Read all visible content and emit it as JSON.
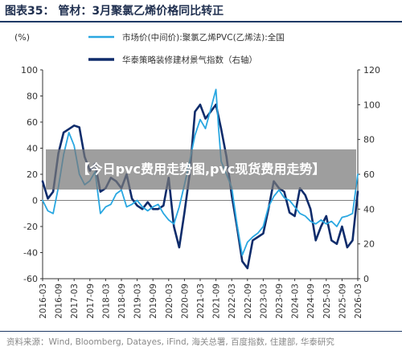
{
  "header": {
    "title": "图表35： 管材：3月聚氯乙烯价格同比转正"
  },
  "banner": {
    "text": "【今日pvc费用走势图,pvc现货费用走势】"
  },
  "footer": {
    "source": "资料来源：Wind, Bloomberg, Datayes, iFind, 海关总署, 百度指数, 住建部, 华泰研究"
  },
  "colors": {
    "series1": "#29a7e1",
    "series2": "#0f2c6b",
    "axis": "#333333"
  },
  "chart_data": {
    "type": "line",
    "left_unit_label": "(%)",
    "left_ylim": [
      -60,
      100
    ],
    "left_ticks": [
      -60,
      -40,
      -20,
      0,
      20,
      40,
      60,
      80,
      100
    ],
    "right_ylim": [
      0,
      120
    ],
    "right_ticks": [
      0,
      20,
      40,
      60,
      80,
      100,
      120
    ],
    "x_ticks": [
      "2016-03",
      "2016-09",
      "2017-03",
      "2017-09",
      "2018-03",
      "2018-09",
      "2019-03",
      "2019-09",
      "2020-03",
      "2020-09",
      "2021-03",
      "2021-09",
      "2022-03",
      "2022-09",
      "2023-03",
      "2023-09",
      "2024-03",
      "2024-09",
      "2025-03",
      "2025-09",
      "2026-03"
    ],
    "legend_position": "top-right",
    "series": [
      {
        "name": "市场价(中间价):聚氯乙烯PVC(乙烯法):全国",
        "axis": "left",
        "x": [
          "2016-03",
          "2016-05",
          "2016-07",
          "2016-09",
          "2016-11",
          "2017-01",
          "2017-03",
          "2017-05",
          "2017-07",
          "2017-09",
          "2017-11",
          "2018-01",
          "2018-03",
          "2018-05",
          "2018-07",
          "2018-09",
          "2018-11",
          "2019-01",
          "2019-03",
          "2019-05",
          "2019-07",
          "2019-09",
          "2019-11",
          "2020-01",
          "2020-03",
          "2020-05",
          "2020-07",
          "2020-09",
          "2020-11",
          "2021-01",
          "2021-03",
          "2021-05",
          "2021-07",
          "2021-09",
          "2021-10",
          "2021-11",
          "2022-01",
          "2022-03",
          "2022-05",
          "2022-07",
          "2022-09",
          "2022-11",
          "2023-01",
          "2023-03",
          "2023-05",
          "2023-07",
          "2023-09",
          "2023-11",
          "2024-01",
          "2024-03",
          "2024-05",
          "2024-07",
          "2024-09",
          "2024-11",
          "2025-01",
          "2025-03",
          "2025-05",
          "2025-07",
          "2025-09",
          "2025-11",
          "2026-01",
          "2026-03"
        ],
        "values": [
          0,
          -8,
          -10,
          10,
          35,
          52,
          42,
          20,
          12,
          15,
          22,
          -10,
          -5,
          -3,
          5,
          8,
          -5,
          -3,
          0,
          -5,
          -8,
          -5,
          -3,
          -10,
          -15,
          -18,
          -5,
          12,
          30,
          50,
          62,
          55,
          70,
          85,
          55,
          30,
          20,
          10,
          -18,
          -42,
          -32,
          -28,
          -25,
          -20,
          -5,
          3,
          8,
          2,
          0,
          -5,
          -10,
          -12,
          -16,
          -18,
          -15,
          -18,
          -16,
          -20,
          -13,
          -12,
          -10,
          20
        ]
      },
      {
        "name": "华泰策略装修建材景气指数（右轴）",
        "axis": "right",
        "x": [
          "2016-03",
          "2016-05",
          "2016-07",
          "2016-09",
          "2016-11",
          "2017-01",
          "2017-03",
          "2017-05",
          "2017-07",
          "2017-09",
          "2017-11",
          "2018-01",
          "2018-03",
          "2018-05",
          "2018-07",
          "2018-09",
          "2018-11",
          "2019-01",
          "2019-03",
          "2019-05",
          "2019-07",
          "2019-09",
          "2019-11",
          "2020-01",
          "2020-03",
          "2020-05",
          "2020-07",
          "2020-09",
          "2020-11",
          "2021-01",
          "2021-03",
          "2021-05",
          "2021-07",
          "2021-09",
          "2021-11",
          "2022-01",
          "2022-03",
          "2022-05",
          "2022-07",
          "2022-09",
          "2022-11",
          "2023-01",
          "2023-03",
          "2023-05",
          "2023-07",
          "2023-09",
          "2023-11",
          "2024-01",
          "2024-03",
          "2024-05",
          "2024-07",
          "2024-09",
          "2024-11",
          "2025-01",
          "2025-03",
          "2025-05",
          "2025-07",
          "2025-09",
          "2025-11",
          "2026-01",
          "2026-03"
        ],
        "values": [
          56,
          46,
          50,
          72,
          84,
          86,
          88,
          87,
          70,
          62,
          66,
          50,
          52,
          58,
          56,
          52,
          60,
          46,
          42,
          40,
          44,
          40,
          40,
          42,
          58,
          30,
          18,
          38,
          60,
          96,
          100,
          92,
          96,
          100,
          86,
          70,
          48,
          30,
          10,
          6,
          22,
          24,
          26,
          40,
          56,
          52,
          50,
          38,
          36,
          52,
          48,
          40,
          22,
          30,
          36,
          22,
          20,
          30,
          18,
          22,
          50
        ]
      }
    ]
  }
}
